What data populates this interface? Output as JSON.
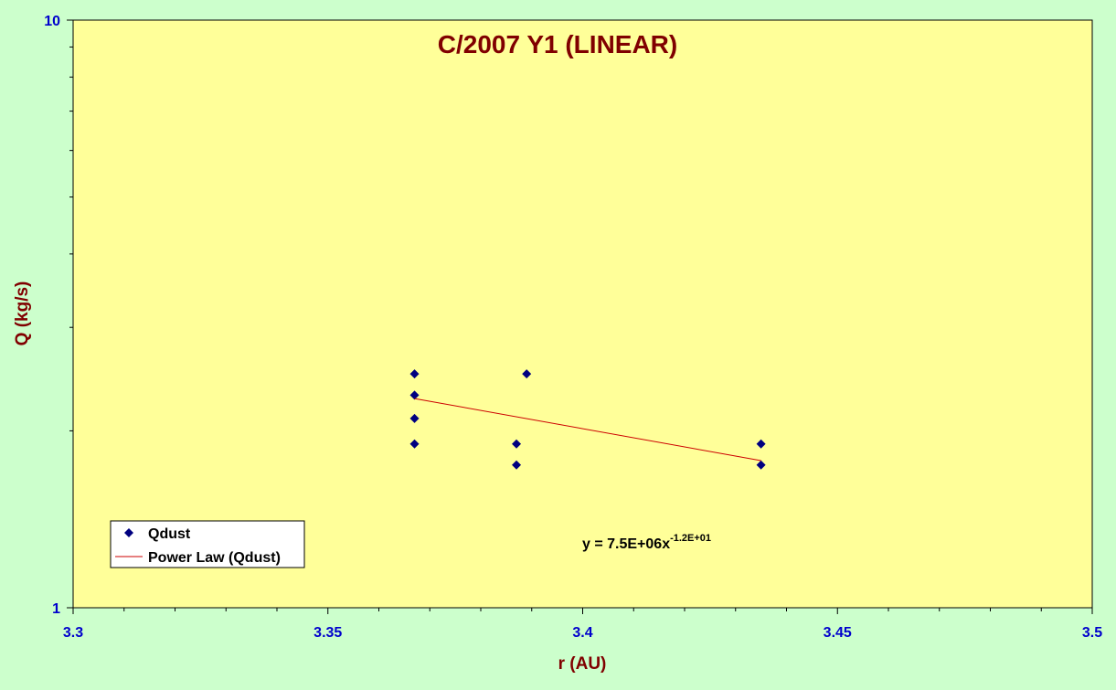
{
  "chart_data": {
    "type": "scatter",
    "title": "C/2007 Y1 (LINEAR)",
    "xlabel": "r (AU)",
    "ylabel": "Q (kg/s)",
    "xlim": [
      3.3,
      3.5
    ],
    "ylim": [
      1,
      10
    ],
    "y_scale": "log",
    "grid": false,
    "x_ticks": [
      "3.3",
      "3.35",
      "3.4",
      "3.45",
      "3.5"
    ],
    "y_ticks": [
      "1",
      "10"
    ],
    "legend_position": "bottom-left",
    "series": [
      {
        "name": "Qdust",
        "kind": "points",
        "marker": "diamond",
        "color": "#000080",
        "x": [
          3.367,
          3.367,
          3.367,
          3.367,
          3.387,
          3.387,
          3.389,
          3.435,
          3.435
        ],
        "y": [
          2.5,
          2.3,
          2.1,
          1.9,
          1.9,
          1.75,
          2.5,
          1.9,
          1.75
        ]
      },
      {
        "name": "Power Law (Qdust)",
        "kind": "line",
        "color": "#cc0000",
        "x": [
          3.367,
          3.435
        ],
        "y": [
          2.27,
          1.78
        ]
      }
    ],
    "annotation": {
      "base": "y = 7.5E+06x",
      "exponent": "-1.2E+01"
    },
    "colors": {
      "outer_background": "#ccffcc",
      "plot_background": "#ffff99",
      "title": "#800000",
      "axis_label": "#800000",
      "tick_label": "#0000cc"
    }
  }
}
